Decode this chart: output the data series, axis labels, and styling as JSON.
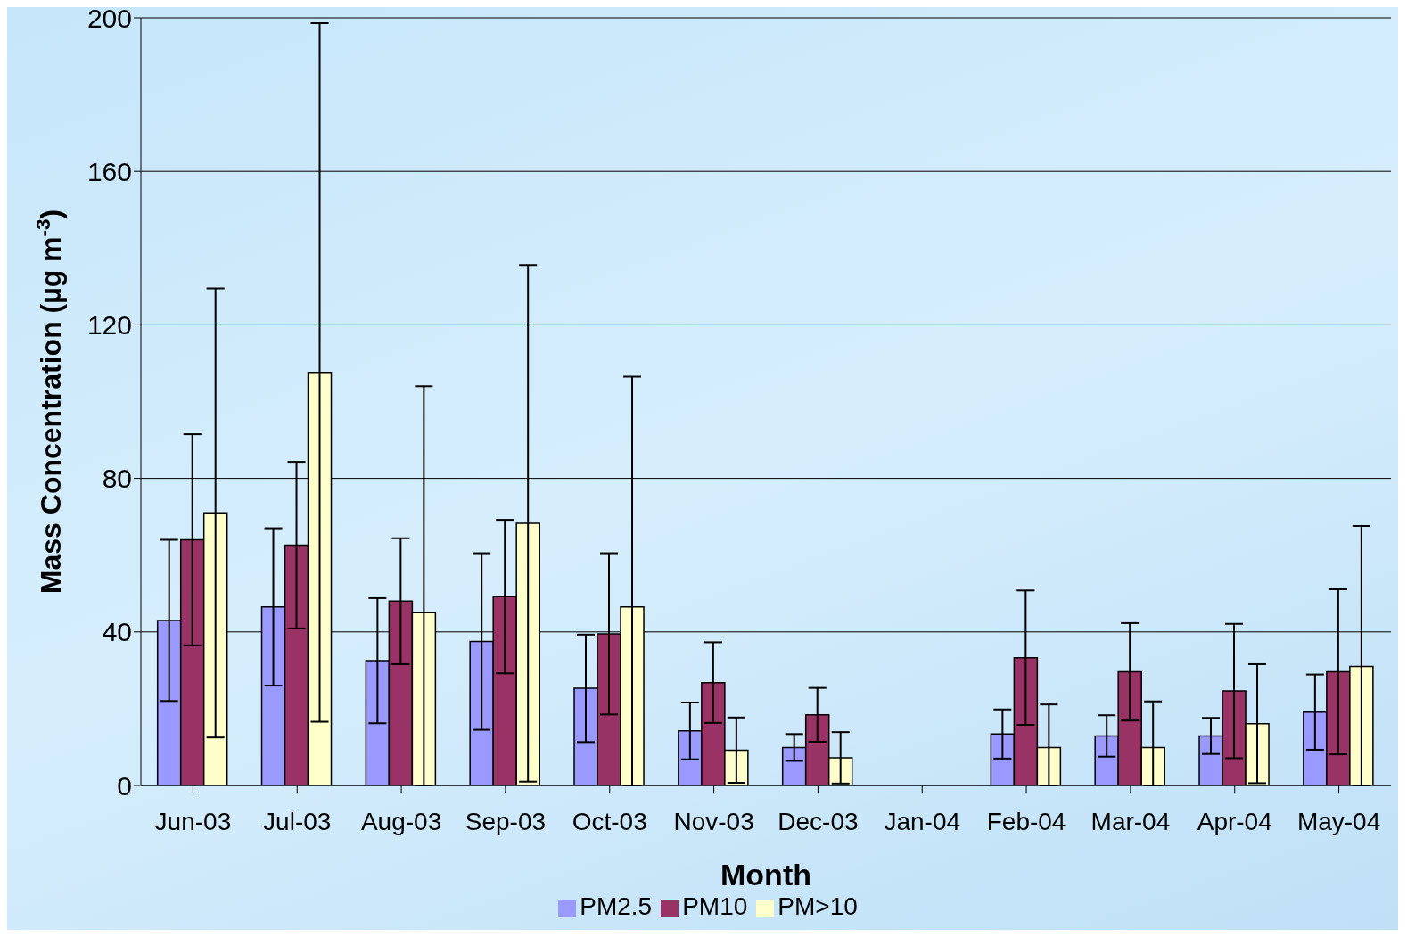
{
  "chart_data": {
    "type": "bar",
    "xlabel": "Month",
    "ylabel": "Mass Concentration (µg m$^{-3}$)",
    "categories": [
      "Jun-03",
      "Jul-03",
      "Aug-03",
      "Sep-03",
      "Oct-03",
      "Nov-03",
      "Dec-03",
      "Jan-04",
      "Feb-04",
      "Mar-04",
      "Apr-04",
      "May-04"
    ],
    "series": [
      {
        "name": "PM2.5",
        "color": "#9999ff",
        "values": [
          43,
          46.5,
          32.5,
          37.5,
          25.3,
          14.2,
          9.9,
          null,
          13.4,
          12.9,
          12.9,
          19.1
        ],
        "errors": [
          21,
          20.5,
          16.3,
          23,
          14,
          7.4,
          3.5,
          null,
          6.4,
          5.4,
          4.7,
          9.8
        ]
      },
      {
        "name": "PM10",
        "color": "#993366",
        "values": [
          64,
          62.6,
          48,
          49.2,
          39.5,
          26.8,
          18.4,
          null,
          33.3,
          29.6,
          24.6,
          29.6
        ],
        "errors": [
          27.5,
          21.7,
          16.4,
          20,
          21,
          10.5,
          7,
          null,
          17.5,
          12.7,
          17.5,
          21.5
        ]
      },
      {
        "name": "PM>10",
        "color": "#ffffcc",
        "values": [
          71,
          107.6,
          45,
          68.3,
          46.5,
          9.2,
          7.2,
          null,
          9.9,
          9.9,
          16.1,
          31
        ],
        "errors": [
          58.5,
          91,
          [
            0,
            104
          ],
          67.3,
          [
            0,
            106.5
          ],
          8.5,
          6.7,
          null,
          [
            0,
            21.1
          ],
          [
            0,
            21.9
          ],
          15.5,
          [
            0,
            67.6
          ]
        ]
      }
    ],
    "ylim": [
      0,
      200
    ],
    "yticks": [
      0,
      40,
      80,
      120,
      160,
      200
    ],
    "grid": "y",
    "legend": "bottom"
  }
}
